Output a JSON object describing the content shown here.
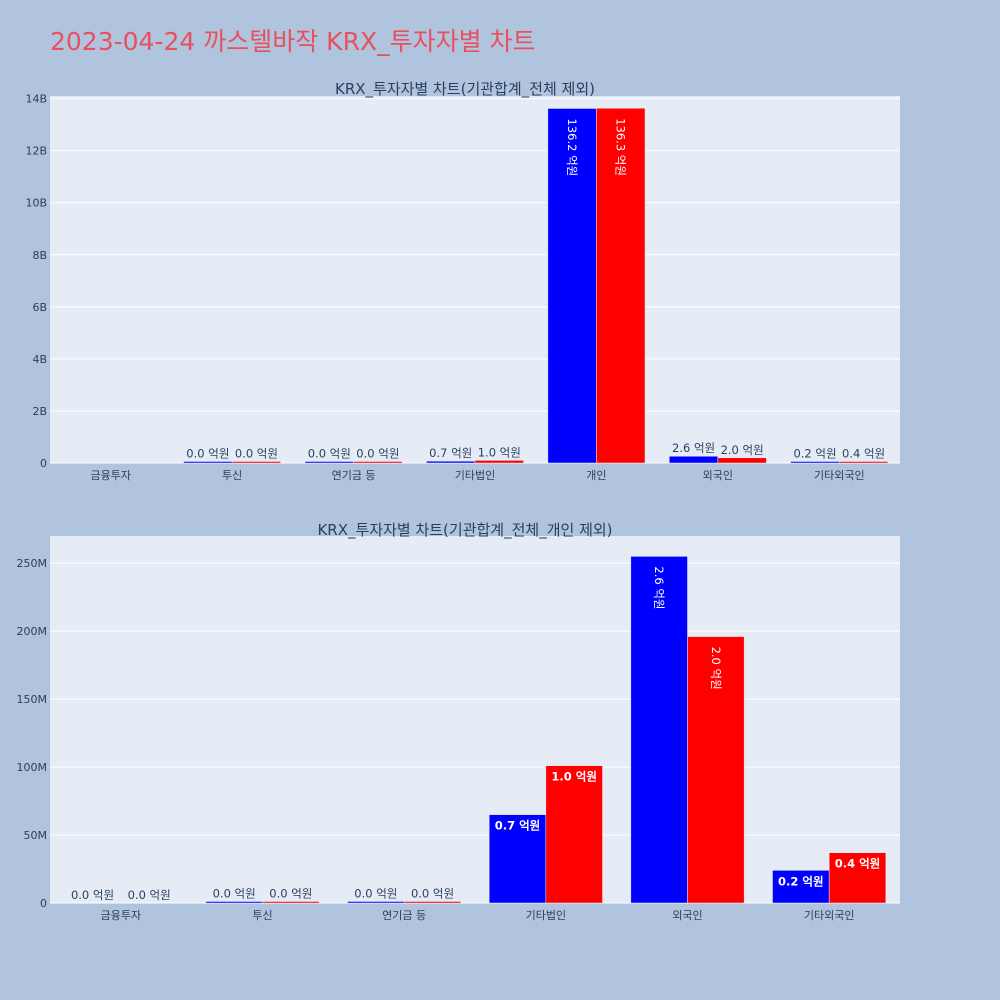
{
  "title": "2023-04-24 까스텔바작 KRX_투자자별 차트",
  "colors": {
    "buy": "#0000ff",
    "sell": "#ff0000",
    "plot_bg": "#e5ecf6",
    "page_bg": "#b0c4de",
    "title": "#e8505f"
  },
  "chart_data": [
    {
      "type": "bar",
      "title": "KRX_투자자별 차트(기관합계_전체 제외)",
      "categories": [
        "금융투자",
        "투신",
        "연기금 등",
        "기타법인",
        "개인",
        "외국인",
        "기타외국인"
      ],
      "series": [
        {
          "values": [
            0,
            1000000,
            1000000,
            70000000,
            13620000000,
            260000000,
            20000000
          ],
          "labels": [
            "",
            "0.0 억원",
            "0.0 억원",
            "0.7 억원",
            "136.2 억원",
            "2.6 억원",
            "0.2 억원"
          ]
        },
        {
          "values": [
            0,
            500000,
            500000,
            100000000,
            13630000000,
            200000000,
            40000000
          ],
          "labels": [
            "",
            "0.0 억원",
            "0.0 억원",
            "1.0 억원",
            "136.3 억원",
            "2.0 억원",
            "0.4 억원"
          ]
        }
      ],
      "ylim": [
        0,
        14100000000
      ],
      "yticks": [
        0,
        2000000000,
        4000000000,
        6000000000,
        8000000000,
        10000000000,
        12000000000,
        14000000000
      ],
      "ytick_labels": [
        "0",
        "2B",
        "4B",
        "6B",
        "8B",
        "10B",
        "12B",
        "14B"
      ],
      "grid": true,
      "legend": "none"
    },
    {
      "type": "bar",
      "title": "KRX_투자자별 차트(기관합계_전체_개인 제외)",
      "categories": [
        "금융투자",
        "투신",
        "연기금 등",
        "기타법인",
        "외국인",
        "기타외국인"
      ],
      "series": [
        {
          "values": [
            0,
            1000000,
            1000000,
            65000000,
            255000000,
            24000000
          ],
          "labels": [
            "0.0 억원",
            "0.0 억원",
            "0.0 억원",
            "0.7 억원",
            "2.6 억원",
            "0.2 억원"
          ]
        },
        {
          "values": [
            0,
            500000,
            1000000,
            101000000,
            196000000,
            37000000
          ],
          "labels": [
            "0.0 억원",
            "0.0 억원",
            "0.0 억원",
            "1.0 억원",
            "2.0 억원",
            "0.4 억원"
          ]
        }
      ],
      "ylim": [
        0,
        270000000
      ],
      "yticks": [
        0,
        50000000,
        100000000,
        150000000,
        200000000,
        250000000
      ],
      "ytick_labels": [
        "0",
        "50M",
        "100M",
        "150M",
        "200M",
        "250M"
      ],
      "grid": true,
      "legend": "none"
    }
  ]
}
